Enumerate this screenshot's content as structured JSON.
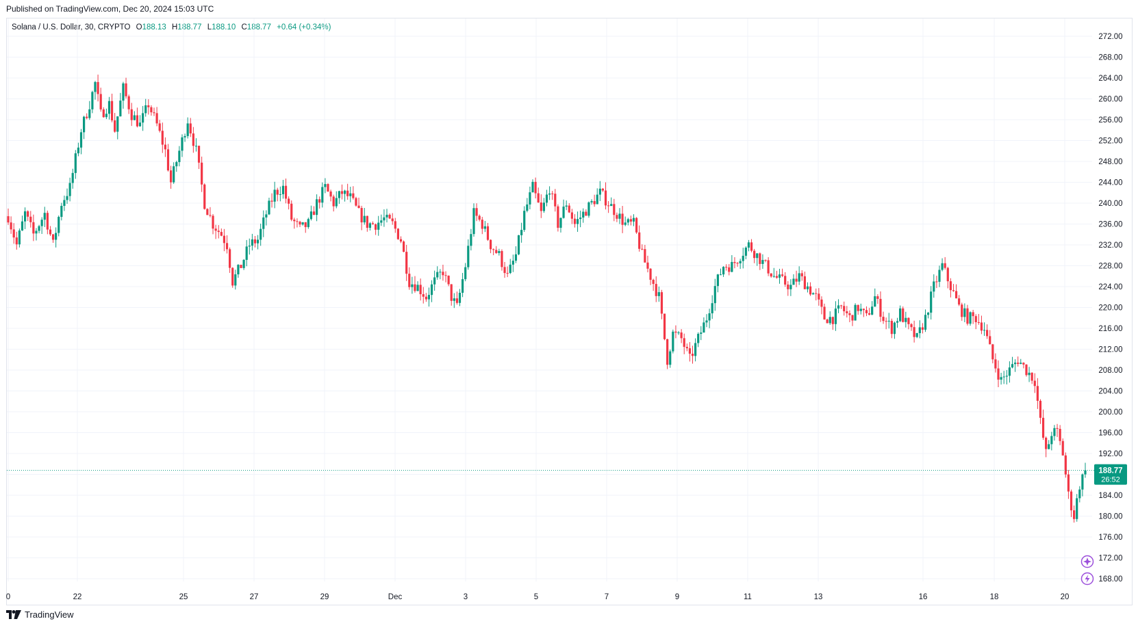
{
  "published": "Published on TradingView.com, Dec 20, 2024 15:03 UTC",
  "legend": {
    "symbol": "Solana / U.S. Dollar, 30, CRYPTO",
    "open_label": "O",
    "open": "188.13",
    "high_label": "H",
    "high": "188.77",
    "low_label": "L",
    "low": "188.10",
    "close_label": "C",
    "close": "188.77",
    "change": "+0.64 (+0.34%)"
  },
  "last_price_label": "188.77",
  "countdown": "26:52",
  "footer": {
    "brand": "TradingView"
  },
  "colors": {
    "up": "#089981",
    "down": "#f23645",
    "grid": "#f0f3fa",
    "axis_text": "#131722",
    "price_line": "#089981",
    "marker": "#9c4fdb"
  },
  "icons": [
    "star-marker-icon",
    "lightning-marker-icon",
    "tradingview-logo-icon"
  ],
  "chart_data": {
    "type": "candlestick",
    "title": "Solana / U.S. Dollar, 30, CRYPTO",
    "y_tick_labels": [
      "168.00",
      "172.00",
      "176.00",
      "180.00",
      "184.00",
      "188.00",
      "192.00",
      "196.00",
      "200.00",
      "204.00",
      "208.00",
      "212.00",
      "216.00",
      "220.00",
      "224.00",
      "228.00",
      "232.00",
      "236.00",
      "240.00",
      "244.00",
      "248.00",
      "252.00",
      "256.00",
      "260.00",
      "264.00",
      "268.00",
      "272.00"
    ],
    "x_tick_labels": [
      "0",
      "22",
      "25",
      "27",
      "29",
      "Dec",
      "3",
      "5",
      "7",
      "9",
      "11",
      "13",
      "16",
      "18",
      "20"
    ],
    "ylim": [
      166,
      275
    ],
    "last_price": 188.77,
    "grid": true,
    "anchor_points": [
      [
        0,
        237.5
      ],
      [
        3,
        232
      ],
      [
        6,
        238
      ],
      [
        9,
        234
      ],
      [
        13,
        238
      ],
      [
        16,
        232
      ],
      [
        19,
        240
      ],
      [
        22,
        243
      ],
      [
        26,
        254
      ],
      [
        29,
        259
      ],
      [
        31,
        263
      ],
      [
        33,
        257
      ],
      [
        36,
        259
      ],
      [
        38,
        254
      ],
      [
        41,
        262
      ],
      [
        44,
        257
      ],
      [
        47,
        255
      ],
      [
        50,
        259
      ],
      [
        53,
        255
      ],
      [
        56,
        250
      ],
      [
        58,
        244
      ],
      [
        61,
        250
      ],
      [
        64,
        256
      ],
      [
        67,
        250
      ],
      [
        70,
        240
      ],
      [
        73,
        236
      ],
      [
        76,
        234
      ],
      [
        78,
        232
      ],
      [
        80,
        225
      ],
      [
        83,
        228
      ],
      [
        86,
        232
      ],
      [
        89,
        233
      ],
      [
        92,
        238
      ],
      [
        95,
        242
      ],
      [
        98,
        243
      ],
      [
        101,
        237
      ],
      [
        104,
        235
      ],
      [
        107,
        236
      ],
      [
        110,
        240
      ],
      [
        113,
        243
      ],
      [
        116,
        240
      ],
      [
        119,
        242
      ],
      [
        122,
        241
      ],
      [
        125,
        238
      ],
      [
        128,
        236
      ],
      [
        131,
        236
      ],
      [
        134,
        237
      ],
      [
        137,
        236
      ],
      [
        140,
        233
      ],
      [
        143,
        225
      ],
      [
        146,
        224
      ],
      [
        149,
        222
      ],
      [
        152,
        225
      ],
      [
        155,
        227
      ],
      [
        158,
        222
      ],
      [
        160,
        220
      ],
      [
        163,
        228
      ],
      [
        166,
        238
      ],
      [
        169,
        236
      ],
      [
        172,
        232
      ],
      [
        175,
        230
      ],
      [
        178,
        226
      ],
      [
        181,
        230
      ],
      [
        184,
        238
      ],
      [
        187,
        243
      ],
      [
        190,
        238
      ],
      [
        193,
        243
      ],
      [
        196,
        236
      ],
      [
        199,
        240
      ],
      [
        202,
        236
      ],
      [
        205,
        238
      ],
      [
        208,
        240
      ],
      [
        211,
        242
      ],
      [
        214,
        240
      ],
      [
        217,
        238
      ],
      [
        220,
        236
      ],
      [
        223,
        236
      ],
      [
        226,
        230
      ],
      [
        229,
        226
      ],
      [
        232,
        222
      ],
      [
        235,
        210
      ],
      [
        237,
        215
      ],
      [
        240,
        214
      ],
      [
        243,
        210
      ],
      [
        246,
        214
      ],
      [
        249,
        218
      ],
      [
        252,
        224
      ],
      [
        255,
        228
      ],
      [
        258,
        228
      ],
      [
        261,
        230
      ],
      [
        264,
        232
      ],
      [
        267,
        230
      ],
      [
        270,
        228
      ],
      [
        273,
        226
      ],
      [
        276,
        225
      ],
      [
        279,
        224
      ],
      [
        282,
        226
      ],
      [
        285,
        224
      ],
      [
        288,
        222
      ],
      [
        291,
        218
      ],
      [
        294,
        218
      ],
      [
        297,
        220
      ],
      [
        300,
        218
      ],
      [
        303,
        220
      ],
      [
        306,
        218
      ],
      [
        309,
        222
      ],
      [
        312,
        218
      ],
      [
        315,
        216
      ],
      [
        318,
        219
      ],
      [
        321,
        216
      ],
      [
        324,
        214
      ],
      [
        327,
        218
      ],
      [
        330,
        224
      ],
      [
        333,
        228
      ],
      [
        336,
        224
      ],
      [
        339,
        220
      ],
      [
        342,
        218
      ],
      [
        345,
        218
      ],
      [
        348,
        216
      ],
      [
        351,
        210
      ],
      [
        354,
        206
      ],
      [
        357,
        208
      ],
      [
        360,
        210
      ],
      [
        363,
        208
      ],
      [
        366,
        206
      ],
      [
        368,
        198
      ],
      [
        370,
        192
      ],
      [
        372,
        196
      ],
      [
        374,
        196
      ],
      [
        376,
        192
      ],
      [
        378,
        184
      ],
      [
        380,
        180
      ],
      [
        382,
        186
      ],
      [
        384,
        188.77
      ]
    ]
  }
}
